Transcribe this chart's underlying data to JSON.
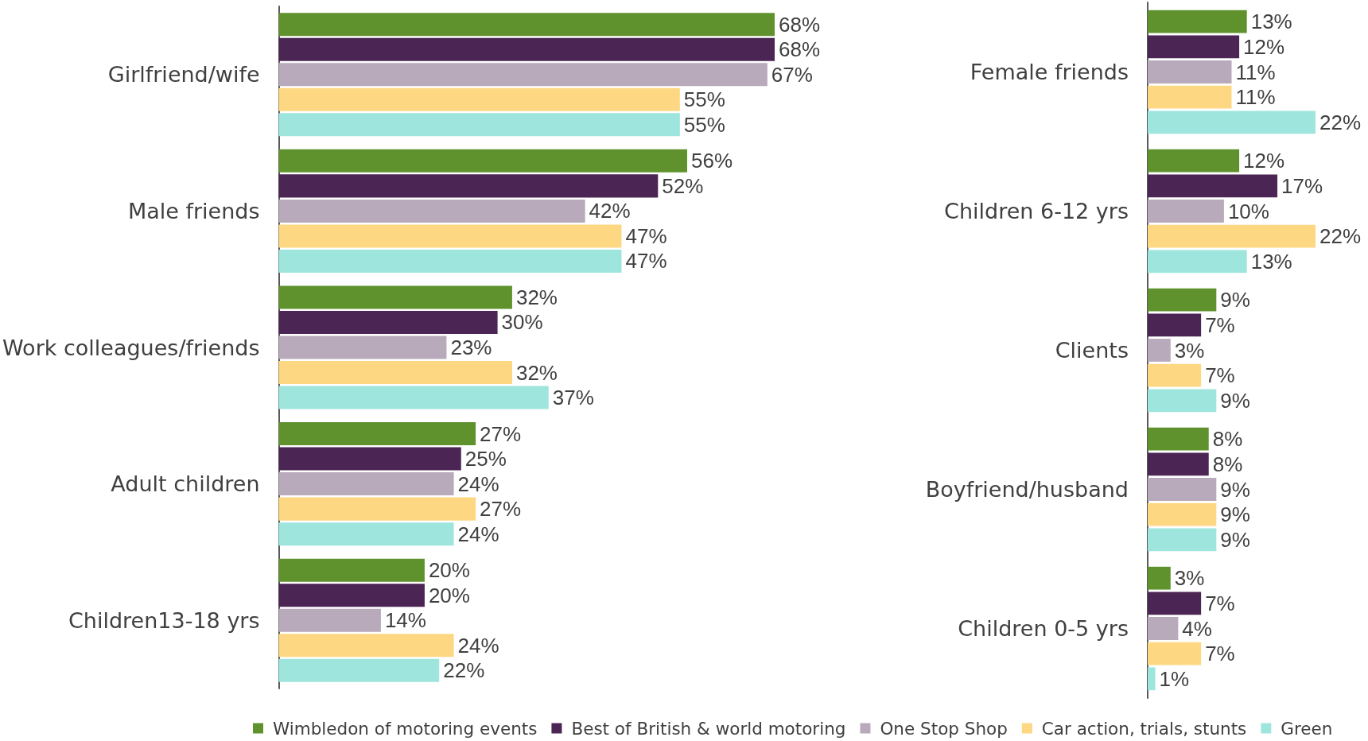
{
  "chart_data": [
    {
      "type": "bar",
      "orientation": "horizontal",
      "legend": "bottom",
      "categories": [
        "Girlfriend/wife",
        "Male friends",
        "Work colleagues/friends",
        "Adult children",
        "Children13-18 yrs"
      ],
      "series": [
        {
          "name": "Wimbledon of motoring events",
          "color": "#5f922d",
          "values": [
            68,
            56,
            32,
            27,
            20
          ],
          "value_labels": [
            "68%",
            "56%",
            "32%",
            "27%",
            "20%"
          ]
        },
        {
          "name": "Best of British & world motoring",
          "color": "#4b2553",
          "values": [
            68,
            52,
            30,
            25,
            20
          ],
          "value_labels": [
            "68%",
            "52%",
            "30%",
            "25%",
            "20%"
          ]
        },
        {
          "name": "One Stop Shop",
          "color": "#b8a9bb",
          "values": [
            67,
            42,
            23,
            24,
            14
          ],
          "value_labels": [
            "67%",
            "42%",
            "23%",
            "24%",
            "14%"
          ]
        },
        {
          "name": "Car action, trials, stunts",
          "color": "#fed783",
          "values": [
            55,
            47,
            32,
            27,
            24
          ],
          "value_labels": [
            "55%",
            "47%",
            "32%",
            "27%",
            "24%"
          ]
        },
        {
          "name": "Green",
          "color": "#9ee5dd",
          "values": [
            55,
            47,
            37,
            24,
            22
          ],
          "value_labels": [
            "55%",
            "47%",
            "37%",
            "24%",
            "22%"
          ]
        }
      ]
    },
    {
      "type": "bar",
      "orientation": "horizontal",
      "categories": [
        "Female friends",
        "Children 6-12 yrs",
        "Clients",
        "Boyfriend/husband",
        "Children 0-5 yrs"
      ],
      "series": [
        {
          "color": "#5f922d",
          "values": [
            13,
            12,
            9,
            8,
            3
          ],
          "value_labels": [
            "13%",
            "12%",
            "9%",
            "8%",
            "3%"
          ]
        },
        {
          "color": "#4b2553",
          "values": [
            12,
            17,
            7,
            8,
            7
          ],
          "value_labels": [
            "12%",
            "17%",
            "7%",
            "8%",
            "7%"
          ]
        },
        {
          "color": "#b8a9bb",
          "values": [
            11,
            10,
            3,
            9,
            4
          ],
          "value_labels": [
            "11%",
            "10%",
            "3%",
            "9%",
            "4%"
          ]
        },
        {
          "color": "#fed783",
          "values": [
            11,
            22,
            7,
            9,
            7
          ],
          "value_labels": [
            "11%",
            "22%",
            "7%",
            "9%",
            "7%"
          ]
        },
        {
          "color": "#9ee5dd",
          "values": [
            22,
            13,
            9,
            9,
            1
          ],
          "value_labels": [
            "22%",
            "13%",
            "9%",
            "9%",
            "1%"
          ]
        }
      ]
    }
  ]
}
